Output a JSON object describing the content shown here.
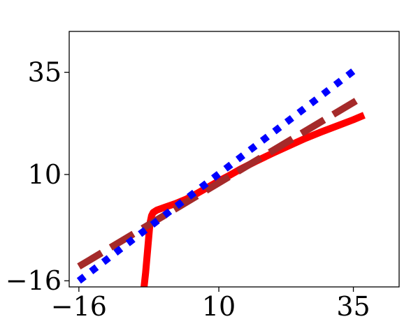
{
  "chart_data": {
    "type": "line",
    "title": "",
    "xlabel": "",
    "ylabel": "",
    "xlim": [
      -17.8,
      43.5
    ],
    "ylim": [
      -17.5,
      45.0
    ],
    "xticks": [
      -16,
      10,
      35
    ],
    "xtick_labels": [
      "−16",
      "10",
      "35"
    ],
    "yticks": [
      -16,
      10,
      35
    ],
    "ytick_labels": [
      "−16",
      "10",
      "35"
    ],
    "grid": false,
    "legend": "none",
    "series": [
      {
        "style": "solid",
        "color": "#ff0000",
        "x": [
          -4.1,
          -3.6,
          -3.2,
          -2.8,
          -2.5,
          -2.2,
          -1.5,
          0,
          2,
          4,
          6,
          8,
          10,
          12,
          14,
          17,
          20,
          23,
          26,
          29,
          32,
          35,
          37
        ],
        "y": [
          -20.0,
          -14.0,
          -8.0,
          -2.0,
          -0.1,
          0.7,
          1.3,
          2.0,
          2.9,
          4.0,
          5.4,
          6.9,
          8.4,
          9.8,
          11.3,
          13.3,
          15.2,
          17.0,
          18.8,
          20.4,
          21.9,
          23.4,
          24.5
        ]
      },
      {
        "style": "dashed",
        "color": "#a52a2a",
        "x": [
          -16,
          37
        ],
        "y": [
          -12.5,
          29.2
        ]
      },
      {
        "style": "dotted",
        "color": "#0000ff",
        "x": [
          -16,
          36
        ],
        "y": [
          -16.0,
          36.3
        ]
      }
    ]
  }
}
